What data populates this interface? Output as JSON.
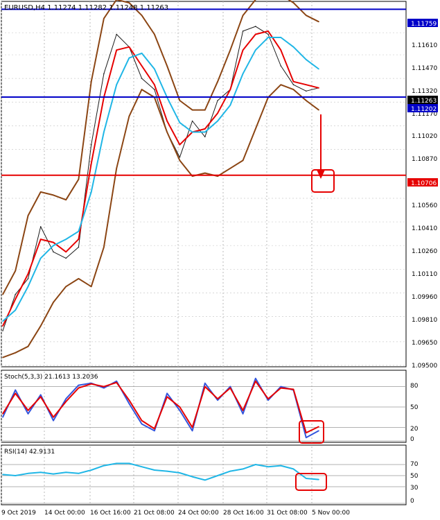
{
  "chart_data": [
    {
      "type": "line",
      "panel": "price",
      "title": "EURUSD,H4  1.11274 1.11282 1.11248 1.11263",
      "x_labels": [
        "9 Oct 2019",
        "14 Oct 00:00",
        "16 Oct 16:00",
        "21 Oct 08:00",
        "24 Oct 00:00",
        "28 Oct 16:00",
        "31 Oct 08:00",
        "5 Nov 00:00"
      ],
      "ylim": [
        1.095,
        1.118
      ],
      "y_ticks": [
        "1.11610",
        "1.11470",
        "1.11320",
        "1.11170",
        "1.11020",
        "1.10870",
        "1.10560",
        "1.10410",
        "1.10260",
        "1.10110",
        "1.09960",
        "1.09810",
        "1.09650",
        "1.09500"
      ],
      "price_axis_labels": [
        "1.11759",
        "1.11263",
        "1.11202",
        "1.10706"
      ],
      "series": [
        {
          "name": "",
          "color": "#1a1a1a",
          "x": [
            0,
            8,
            16,
            24,
            32,
            40,
            48,
            56,
            64,
            72,
            80,
            88,
            96,
            104,
            112,
            120,
            128,
            136,
            144,
            152,
            160,
            168,
            176,
            184,
            192,
            200
          ],
          "values": [
            1.0972,
            1.0995,
            1.1005,
            1.1038,
            1.1022,
            1.1018,
            1.1025,
            1.109,
            1.1135,
            1.116,
            1.1152,
            1.1132,
            1.1125,
            1.1098,
            1.1082,
            1.1105,
            1.1095,
            1.1118,
            1.1125,
            1.1162,
            1.1165,
            1.116,
            1.114,
            1.1128,
            1.1124,
            1.1126
          ]
        },
        {
          "name": "",
          "color": "#e60000",
          "x": [
            0,
            8,
            16,
            24,
            32,
            40,
            48,
            56,
            64,
            72,
            80,
            88,
            96,
            104,
            112,
            120,
            128,
            136,
            144,
            152,
            160,
            168,
            176,
            184,
            192,
            200
          ],
          "values": [
            1.0975,
            1.0992,
            1.1008,
            1.103,
            1.1028,
            1.1022,
            1.103,
            1.1078,
            1.112,
            1.115,
            1.1152,
            1.114,
            1.1128,
            1.1105,
            1.109,
            1.1098,
            1.11,
            1.111,
            1.1125,
            1.115,
            1.116,
            1.1162,
            1.115,
            1.113,
            1.1128,
            1.1126
          ]
        },
        {
          "name": "",
          "color": "#1fb6e6",
          "x": [
            0,
            8,
            16,
            24,
            32,
            40,
            48,
            56,
            64,
            72,
            80,
            88,
            96,
            104,
            112,
            120,
            128,
            136,
            144,
            152,
            160,
            168,
            176,
            184,
            192,
            200
          ],
          "values": [
            1.0978,
            1.0985,
            1.1,
            1.1018,
            1.1026,
            1.103,
            1.1035,
            1.106,
            1.1098,
            1.1128,
            1.1145,
            1.1148,
            1.1138,
            1.112,
            1.1104,
            1.1098,
            1.1098,
            1.1105,
            1.1115,
            1.1135,
            1.115,
            1.1158,
            1.1158,
            1.1152,
            1.1144,
            1.1138
          ]
        },
        {
          "name": "",
          "color": "#8b4513",
          "x": [
            0,
            8,
            16,
            24,
            32,
            40,
            48,
            56,
            64,
            72,
            80,
            88,
            96,
            104,
            112,
            120,
            128,
            136,
            144,
            152,
            160,
            168,
            176,
            184,
            192,
            200
          ],
          "values": [
            1.0995,
            1.101,
            1.1045,
            1.106,
            1.1058,
            1.1055,
            1.1068,
            1.113,
            1.117,
            1.1182,
            1.118,
            1.1172,
            1.116,
            1.114,
            1.1118,
            1.1112,
            1.1112,
            1.113,
            1.115,
            1.1172,
            1.1182,
            1.1186,
            1.1185,
            1.118,
            1.1172,
            1.1168
          ]
        },
        {
          "name": "",
          "color": "#8b4513",
          "x": [
            0,
            8,
            16,
            24,
            32,
            40,
            48,
            56,
            64,
            72,
            80,
            88,
            96,
            104,
            112,
            120,
            128,
            136,
            144,
            152,
            160,
            168,
            176,
            184,
            192,
            200
          ],
          "values": [
            1.0955,
            1.0958,
            1.0962,
            1.0975,
            1.099,
            1.1,
            1.1005,
            1.1,
            1.1025,
            1.1075,
            1.1108,
            1.1125,
            1.112,
            1.1098,
            1.108,
            1.107,
            1.1072,
            1.107,
            1.1075,
            1.108,
            1.11,
            1.112,
            1.1128,
            1.1125,
            1.1118,
            1.1112
          ]
        }
      ],
      "hlines": [
        {
          "value": 1.11759,
          "color": "#0000c8"
        },
        {
          "value": 1.11202,
          "color": "#0000c8"
        },
        {
          "value": 1.10706,
          "color": "#e60000"
        }
      ]
    },
    {
      "type": "line",
      "panel": "stochastic",
      "title": "Stoch(5,3,3) 21.1613 13.2036",
      "ylim": [
        0,
        100
      ],
      "y_ticks": [
        "80",
        "50",
        "20",
        "0"
      ],
      "series": [
        {
          "name": "",
          "color": "#3355dd",
          "x": [
            0,
            8,
            16,
            24,
            32,
            40,
            48,
            56,
            64,
            72,
            80,
            88,
            96,
            104,
            112,
            120,
            128,
            136,
            144,
            152,
            160,
            168,
            176,
            184,
            192,
            200
          ],
          "values": [
            35,
            75,
            40,
            68,
            30,
            62,
            82,
            85,
            78,
            88,
            55,
            25,
            15,
            70,
            45,
            15,
            85,
            60,
            80,
            40,
            92,
            60,
            80,
            75,
            5,
            15
          ]
        },
        {
          "name": "",
          "color": "#e60000",
          "x": [
            0,
            8,
            16,
            24,
            32,
            40,
            48,
            56,
            64,
            72,
            80,
            88,
            96,
            104,
            112,
            120,
            128,
            136,
            144,
            152,
            160,
            168,
            176,
            184,
            192,
            200
          ],
          "values": [
            40,
            70,
            45,
            65,
            35,
            58,
            78,
            84,
            80,
            86,
            60,
            30,
            18,
            65,
            50,
            20,
            80,
            62,
            78,
            45,
            88,
            62,
            78,
            76,
            12,
            21
          ]
        }
      ]
    },
    {
      "type": "line",
      "panel": "rsi",
      "title": "RSI(14) 42.9131",
      "ylim": [
        0,
        100
      ],
      "y_ticks": [
        "70",
        "50",
        "30",
        "0"
      ],
      "series": [
        {
          "name": "",
          "color": "#1fb6e6",
          "x": [
            0,
            8,
            16,
            24,
            32,
            40,
            48,
            56,
            64,
            72,
            80,
            88,
            96,
            104,
            112,
            120,
            128,
            136,
            144,
            152,
            160,
            168,
            176,
            184,
            192,
            200
          ],
          "values": [
            52,
            50,
            54,
            56,
            53,
            56,
            54,
            60,
            68,
            72,
            72,
            66,
            60,
            58,
            55,
            48,
            42,
            50,
            58,
            62,
            70,
            66,
            68,
            62,
            45,
            43
          ]
        }
      ]
    }
  ]
}
